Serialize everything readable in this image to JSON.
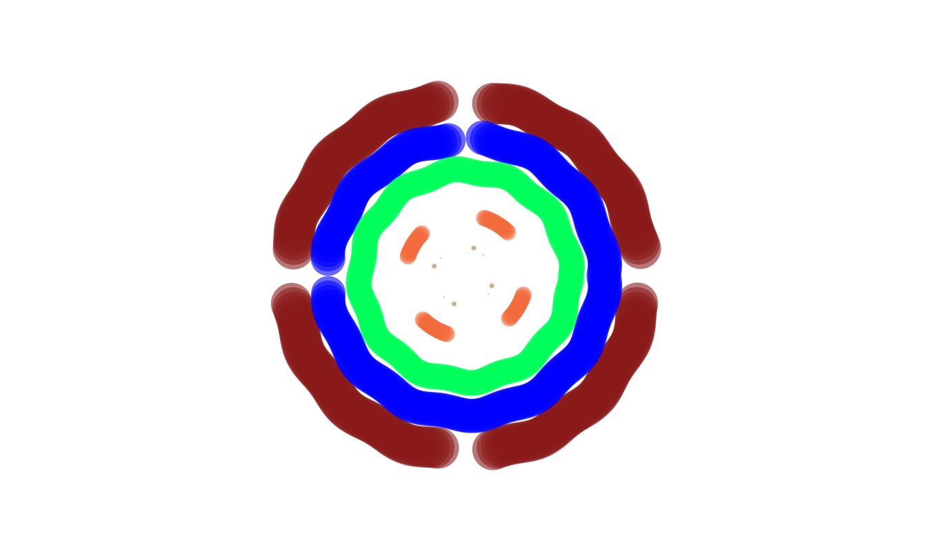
{
  "chart_data": {
    "type": "scatter",
    "title": "",
    "xlabel": "",
    "ylabel": "",
    "axes_visible": false,
    "grid": false,
    "legend": "none",
    "aspect": "equal",
    "xlim": [
      -1.3,
      1.3
    ],
    "ylim": [
      -1.3,
      1.3
    ],
    "alpha": 0.6,
    "series": [
      {
        "shape": "ring",
        "radius": 1.07,
        "marker_size": 30,
        "color": "#8b1a1a",
        "point_count": 240,
        "gap_fraction": 0.05,
        "gaps_at_deg": [
          90,
          0,
          270,
          180
        ]
      },
      {
        "shape": "ring",
        "radius": 0.84,
        "marker_size": 25,
        "color": "#0000ff",
        "point_count": 200,
        "gap_fraction": 0.03,
        "gaps_at_deg": [
          90,
          180
        ]
      },
      {
        "shape": "ring",
        "radius": 0.64,
        "marker_size": 19,
        "color": "#00ff5a",
        "point_count": 180,
        "gap_fraction": 0,
        "gaps_at_deg": []
      },
      {
        "shape": "arcs",
        "radius": 0.37,
        "marker_size": 12,
        "color": "#f26a3c",
        "points_per_arc": 14,
        "arcs_deg": [
          [
            46,
            72
          ],
          [
            136,
            161
          ],
          [
            226,
            252
          ],
          [
            316,
            342
          ]
        ]
      },
      {
        "shape": "points",
        "marker_size": 4,
        "color": "#b07a3c",
        "x": [
          0.05,
          -0.19,
          0.16,
          -0.07,
          0.11,
          -0.15,
          0.14,
          -0.13
        ],
        "y": [
          0.17,
          0.06,
          -0.06,
          -0.17,
          0.13,
          0.11,
          -0.11,
          -0.13
        ],
        "sizes": [
          7,
          7,
          7,
          7,
          2,
          2,
          2,
          2
        ]
      }
    ]
  }
}
